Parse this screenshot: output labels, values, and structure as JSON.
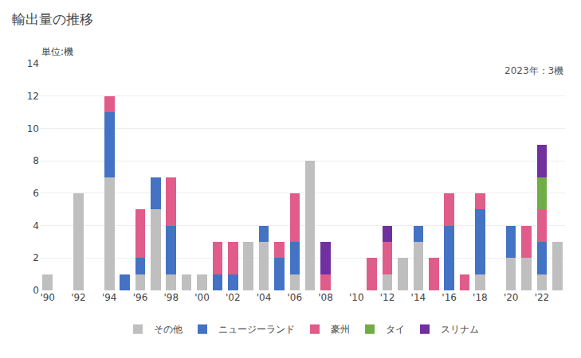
{
  "chart_data": {
    "type": "bar",
    "stacked": true,
    "title": "輸出量の推移",
    "ylabel": "単位:機",
    "annotations": [
      "2023年：3機"
    ],
    "categories": [
      "'90",
      null,
      "'92",
      null,
      "'94",
      null,
      "'96",
      null,
      "'98",
      null,
      "'00",
      null,
      "'02",
      null,
      "'04",
      null,
      "'06",
      null,
      "'08",
      null,
      "'10",
      null,
      "'12",
      null,
      "'14",
      null,
      "'16",
      null,
      "'18",
      null,
      "'20",
      null,
      "'22",
      null
    ],
    "series": [
      {
        "name": "その他",
        "color": "#BFBFBF",
        "values": [
          1,
          0,
          6,
          0,
          7,
          0,
          1,
          5,
          1,
          1,
          1,
          0,
          0,
          3,
          3,
          0,
          1,
          8,
          0,
          0,
          0,
          0,
          1,
          2,
          3,
          0,
          0,
          0,
          1,
          0,
          2,
          2,
          1,
          3
        ]
      },
      {
        "name": "ニュージーランド",
        "color": "#4472C4",
        "values": [
          0,
          0,
          0,
          0,
          4,
          1,
          1,
          2,
          3,
          0,
          0,
          1,
          1,
          0,
          1,
          2,
          2,
          0,
          0,
          0,
          0,
          0,
          0,
          0,
          1,
          0,
          4,
          0,
          4,
          0,
          2,
          0,
          2,
          0
        ]
      },
      {
        "name": "豪州",
        "color": "#E05C8A",
        "values": [
          0,
          0,
          0,
          0,
          1,
          0,
          3,
          0,
          3,
          0,
          0,
          2,
          2,
          0,
          0,
          1,
          3,
          0,
          1,
          0,
          0,
          2,
          2,
          0,
          0,
          2,
          2,
          1,
          1,
          0,
          0,
          2,
          2,
          0
        ]
      },
      {
        "name": "タイ",
        "color": "#70AD47",
        "values": [
          0,
          0,
          0,
          0,
          0,
          0,
          0,
          0,
          0,
          0,
          0,
          0,
          0,
          0,
          0,
          0,
          0,
          0,
          0,
          0,
          0,
          0,
          0,
          0,
          0,
          0,
          0,
          0,
          0,
          0,
          0,
          0,
          2,
          0
        ]
      },
      {
        "name": "スリナム",
        "color": "#7030A0",
        "values": [
          0,
          0,
          0,
          0,
          0,
          0,
          0,
          0,
          0,
          0,
          0,
          0,
          0,
          0,
          0,
          0,
          0,
          0,
          2,
          0,
          0,
          0,
          1,
          0,
          0,
          0,
          0,
          0,
          0,
          0,
          0,
          0,
          2,
          0
        ]
      }
    ],
    "ylim": [
      0,
      14
    ],
    "yticks": [
      0,
      2,
      4,
      6,
      8,
      10,
      12,
      14
    ],
    "grid": true,
    "legend": "bottom"
  }
}
